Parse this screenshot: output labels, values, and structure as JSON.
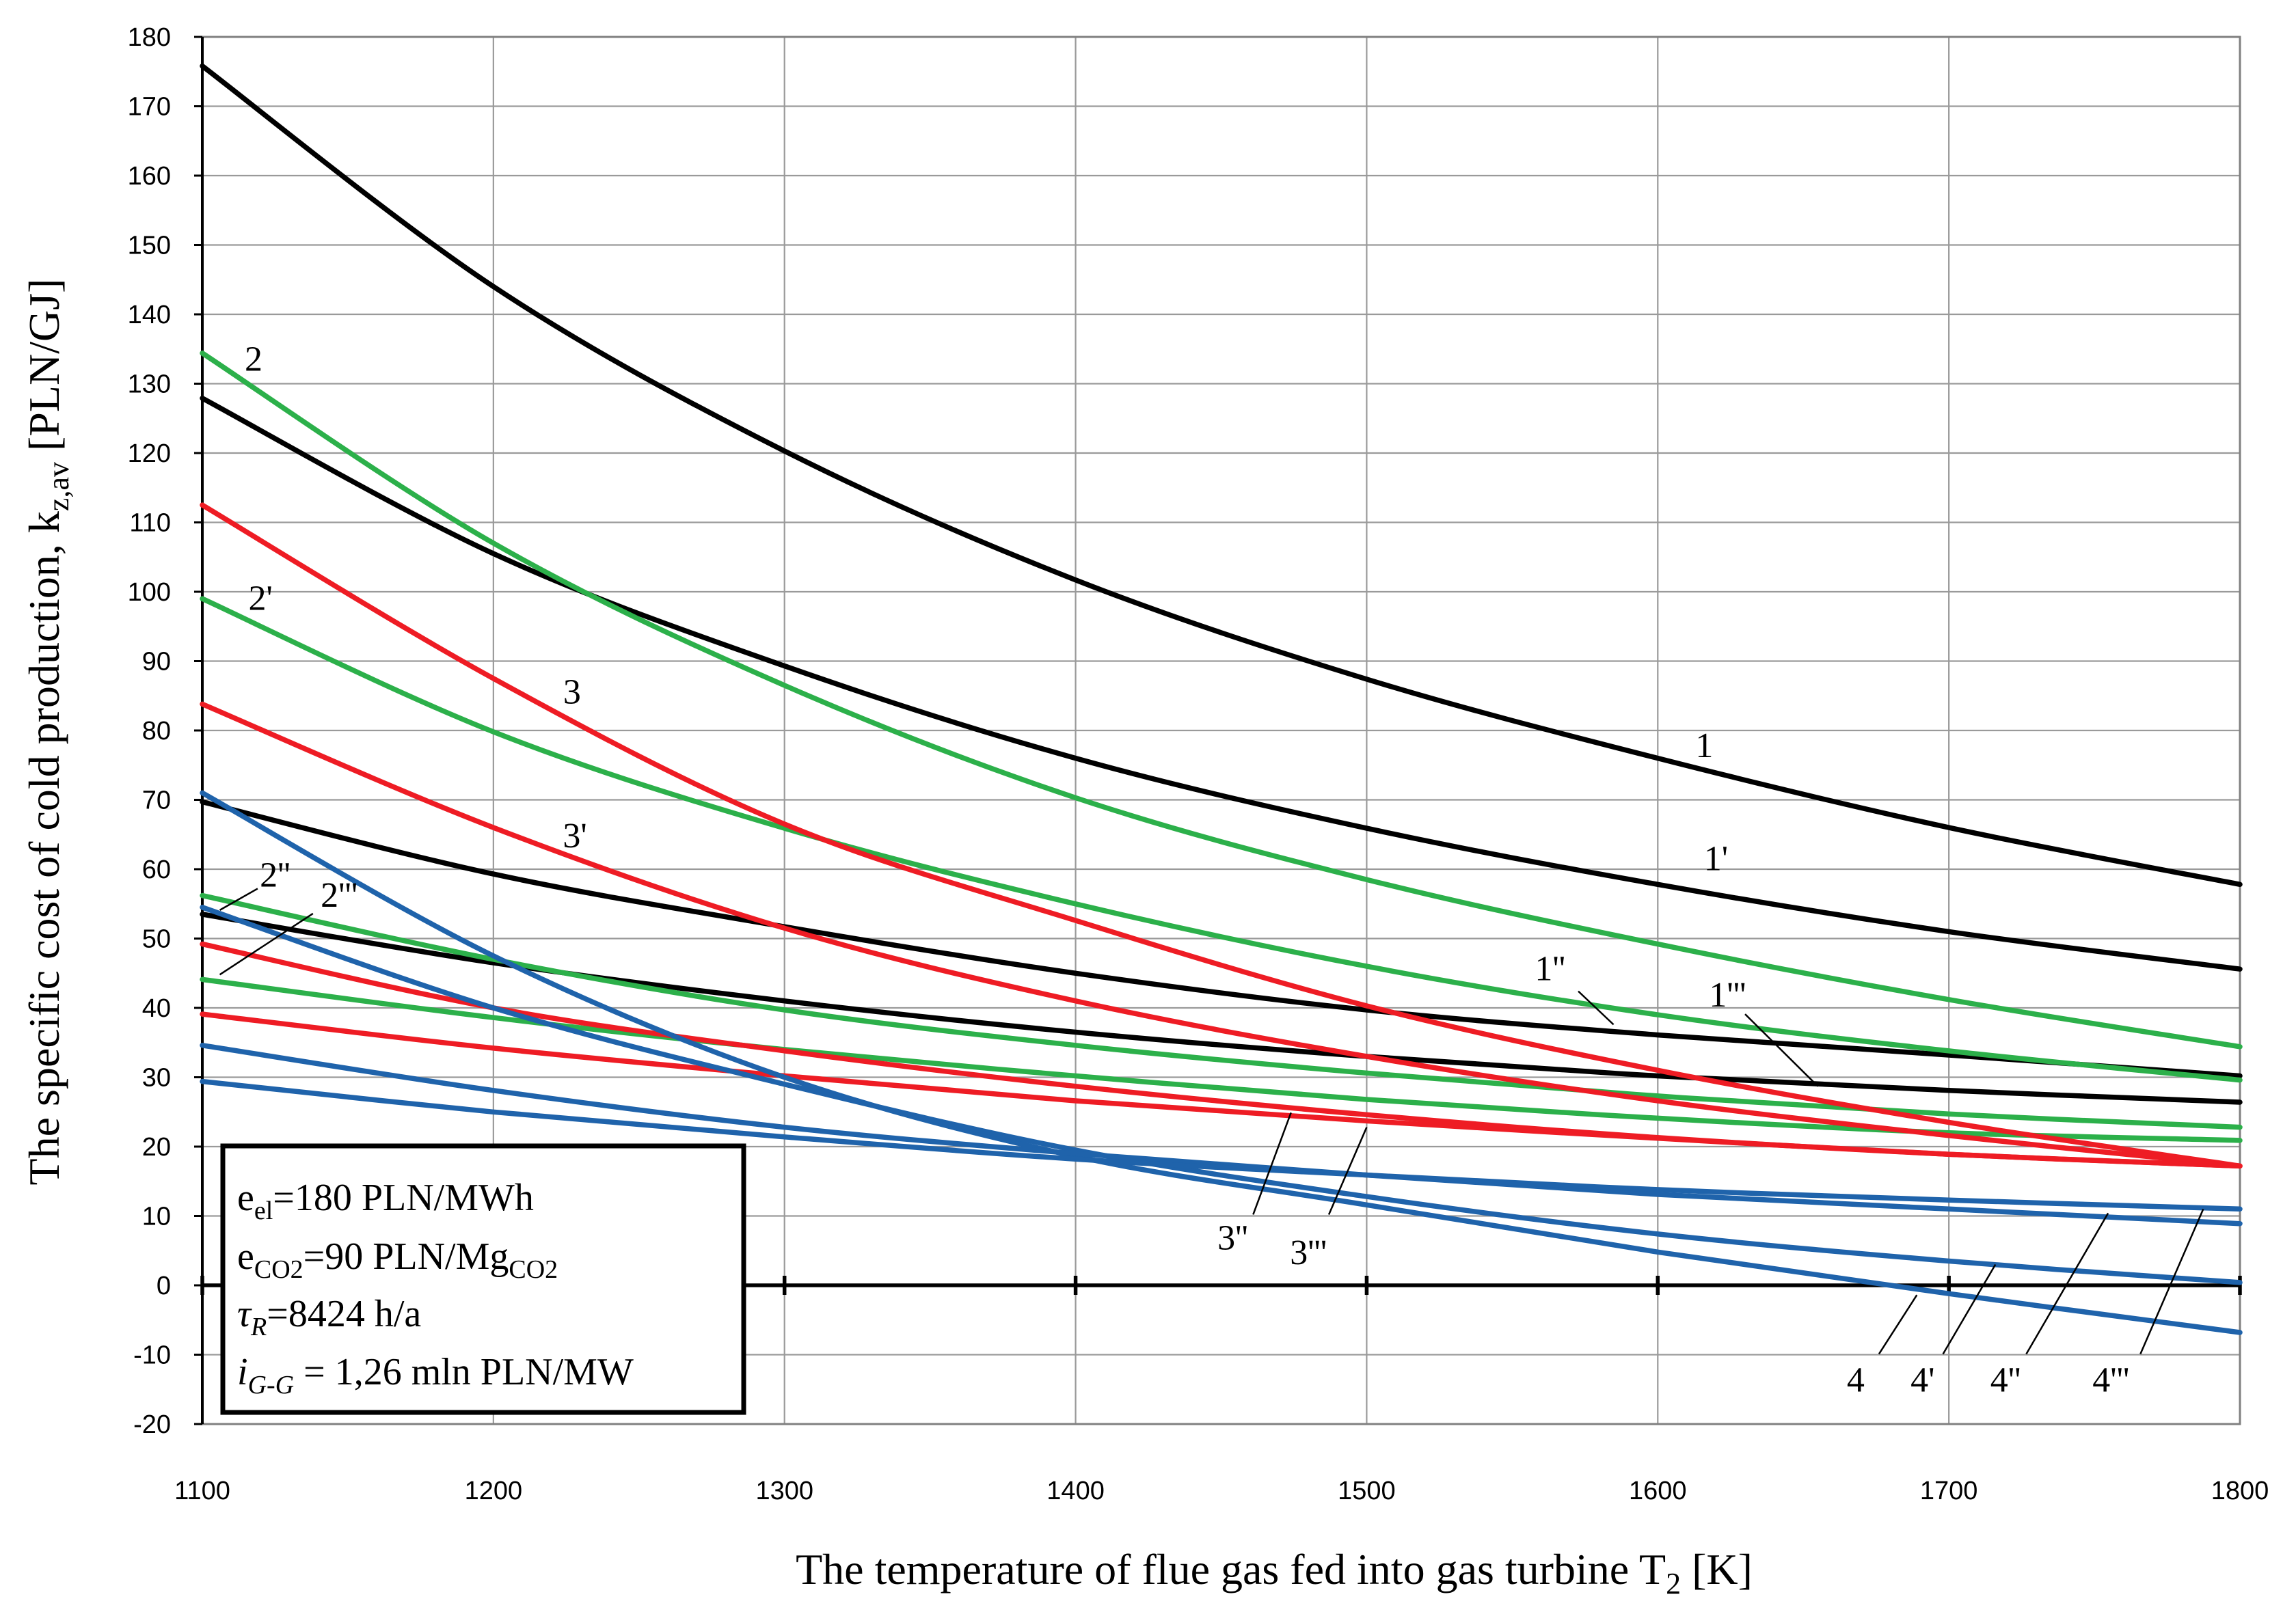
{
  "chart_data": {
    "type": "line",
    "xlabel": {
      "text": "The temperature of flue gas fed into gas turbine T",
      "sub": "2",
      "tail": " [K]"
    },
    "ylabel": {
      "text": "The specific cost of cold production, k",
      "sub": "z,av",
      "tail": " [PLN/GJ]"
    },
    "xlim": [
      1100,
      1800
    ],
    "ylim": [
      -20,
      180
    ],
    "xticks": [
      1100,
      1200,
      1300,
      1400,
      1500,
      1600,
      1700,
      1800
    ],
    "yticks": [
      -20,
      -10,
      0,
      10,
      20,
      30,
      40,
      50,
      60,
      70,
      80,
      90,
      100,
      110,
      120,
      130,
      140,
      150,
      160,
      170,
      180
    ],
    "grid": true,
    "x": [
      1100,
      1200,
      1300,
      1400,
      1500,
      1600,
      1700,
      1800
    ],
    "series": [
      {
        "label": "1",
        "color": "#000000",
        "values": [
          175.8,
          144,
          120.3,
          101.7,
          87.4,
          76,
          66,
          57.8
        ]
      },
      {
        "label": "1'",
        "color": "#000000",
        "values": [
          127.9,
          105.5,
          89.3,
          76,
          65.9,
          57.8,
          51,
          45.6
        ]
      },
      {
        "label": "1''",
        "color": "#000000",
        "values": [
          69.7,
          59.3,
          51.7,
          45,
          39.7,
          36.1,
          33.2,
          30.2
        ]
      },
      {
        "label": "1'''",
        "color": "#000000",
        "values": [
          53.5,
          46.5,
          41,
          36.5,
          33,
          30.2,
          28.1,
          26.4
        ]
      },
      {
        "label": "2",
        "color": "#2cb04a",
        "values": [
          134.4,
          107,
          86.5,
          70.3,
          58.5,
          49.2,
          41.2,
          34.4
        ]
      },
      {
        "label": "2'",
        "color": "#2cb04a",
        "values": [
          99,
          79.8,
          65.9,
          55,
          46,
          39,
          33.8,
          29.6
        ]
      },
      {
        "label": "2''",
        "color": "#2cb04a",
        "values": [
          56.2,
          47,
          39.7,
          34.6,
          30.6,
          27.3,
          24.7,
          22.8
        ]
      },
      {
        "label": "2'''",
        "color": "#2cb04a",
        "values": [
          44.1,
          38.6,
          34,
          30.2,
          26.8,
          24.1,
          22,
          20.9
        ]
      },
      {
        "label": "3",
        "color": "#ee1c24",
        "values": [
          112.5,
          87.5,
          66.5,
          52.6,
          40.3,
          31,
          23.5,
          17.2
        ]
      },
      {
        "label": "3'",
        "color": "#ee1c24",
        "values": [
          83.8,
          66,
          51.5,
          41,
          33,
          26.6,
          21.6,
          17.2
        ]
      },
      {
        "label": "3''",
        "color": "#ee1c24",
        "values": [
          49.2,
          40,
          33.8,
          28.7,
          24.6,
          21.3,
          18.9,
          17.2
        ]
      },
      {
        "label": "3'''",
        "color": "#ee1c24",
        "values": [
          39.1,
          34.2,
          30.2,
          26.6,
          23.7,
          21.2,
          18.9,
          17.2
        ]
      },
      {
        "label": "4",
        "color": "#1f63ab",
        "values": [
          71,
          47.5,
          30,
          18.6,
          11.6,
          4.8,
          -1.2,
          -6.8
        ]
      },
      {
        "label": "4'",
        "color": "#1f63ab",
        "values": [
          54.5,
          40,
          29,
          19.5,
          12.8,
          7.4,
          3.5,
          0.4
        ]
      },
      {
        "label": "4''",
        "color": "#1f63ab",
        "values": [
          34.6,
          28.1,
          22.8,
          19,
          15.9,
          13.1,
          11,
          8.9
        ]
      },
      {
        "label": "4'''",
        "color": "#1f63ab",
        "values": [
          29.4,
          25,
          21.4,
          18.2,
          15.9,
          13.8,
          12.3,
          11
        ]
      }
    ]
  },
  "parameter_box": {
    "lines": [
      [
        {
          "t": "e"
        },
        {
          "t": "el",
          "sub": true
        },
        {
          "t": "=180 PLN/MWh"
        }
      ],
      [
        {
          "t": "e"
        },
        {
          "t": "CO2",
          "sub": true
        },
        {
          "t": "=90 PLN/Mg"
        },
        {
          "t": "CO2",
          "sub": true
        }
      ],
      [
        {
          "t": "τ",
          "italic": true
        },
        {
          "t": "R",
          "sub": true,
          "italic": true
        },
        {
          "t": "=8424 h/a"
        }
      ],
      [
        {
          "t": "i",
          "italic": true
        },
        {
          "t": "G-G",
          "sub": true,
          "italic": true
        },
        {
          "t": " = 1,26 mln PLN/MW"
        }
      ]
    ]
  }
}
